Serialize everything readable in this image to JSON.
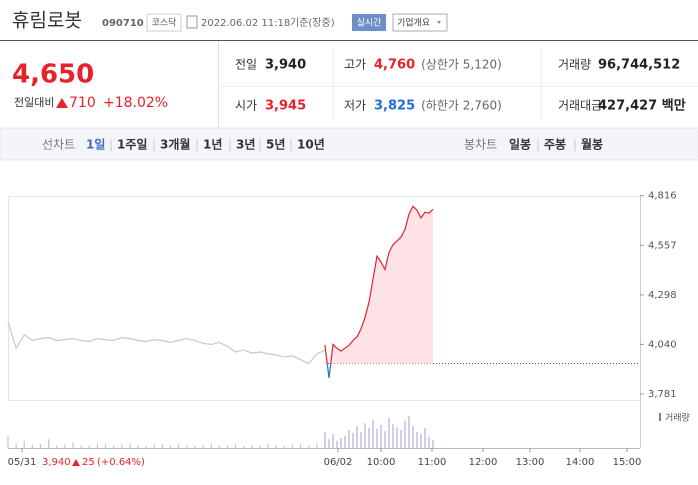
{
  "header": {
    "name": "휴림로봇",
    "code": "090710",
    "market": "코스닥",
    "datetime": "2022.06.02 11:18",
    "basis": "기준(장중)",
    "realtime": "실시간",
    "company_info": "기업개요"
  },
  "price": {
    "current": "4,650",
    "change_label": "전일대비",
    "change": "710",
    "change_pct": "+18.02%"
  },
  "stats": [
    {
      "label": "전일",
      "value": "3,940"
    },
    {
      "label": "고가",
      "value": "4,760",
      "note": "(상한가 5,120)"
    },
    {
      "label": "거래량",
      "value": "96,744,512"
    },
    {
      "label": "시가",
      "value": "3,945"
    },
    {
      "label": "저가",
      "value": "3,825",
      "note": "(하한가 2,760)"
    },
    {
      "label": "거래대금",
      "value": "427,427 백만"
    }
  ],
  "tabs": {
    "line_label": "선차트",
    "line_periods": [
      "1일",
      "1주일",
      "3개월",
      "1년",
      "3년",
      "5년",
      "10년"
    ],
    "candle_label": "봉차트",
    "candle_periods": [
      "일봉",
      "주봉",
      "월봉"
    ]
  },
  "chart_data": {
    "type": "line",
    "ylim": [
      3760,
      4830
    ],
    "yticks": [
      {
        "value": 4816,
        "label": "4,816"
      },
      {
        "value": 4557,
        "label": "4,557"
      },
      {
        "value": 4298,
        "label": "4,298"
      },
      {
        "value": 4040,
        "label": "4,040"
      },
      {
        "value": 3781,
        "label": "3,781"
      }
    ],
    "x_labels": [
      "05/31",
      "06/02",
      "10:00",
      "11:00",
      "12:00",
      "13:00",
      "14:00",
      "15:00"
    ],
    "baseline": 3940,
    "series": [
      {
        "color": "#c8c8c8",
        "values": [
          4160,
          4020,
          4090,
          4060,
          4070,
          4075,
          4060,
          4065,
          4070,
          4060,
          4055,
          4070,
          4065,
          4060,
          4075,
          4070,
          4060,
          4055,
          4065,
          4060,
          4050,
          4060,
          4070,
          4060,
          4045,
          4040,
          4050,
          4030,
          4000,
          4010,
          3995,
          4000,
          3990,
          3985,
          3975,
          3980,
          3960,
          3940,
          3990,
          4010
        ]
      },
      {
        "color": "#e6232b",
        "down_color": "#1f6fd1",
        "fill": "#fde3e5",
        "values": [
          4037,
          3864,
          4040,
          4020,
          4005,
          4020,
          4035,
          4060,
          4080,
          4120,
          4180,
          4260,
          4380,
          4500,
          4470,
          4430,
          4520,
          4560,
          4580,
          4600,
          4640,
          4720,
          4760,
          4740,
          4700,
          4730,
          4725,
          4745
        ]
      }
    ],
    "volume": {
      "name": "거래량",
      "color": "#b9a9d6",
      "ylim": [
        0,
        100
      ],
      "values": [
        30,
        12,
        18,
        8,
        10,
        22,
        6,
        9,
        14,
        7,
        5,
        11,
        8,
        6,
        9,
        12,
        7,
        5,
        8,
        10,
        6,
        9,
        7,
        5,
        8,
        11,
        6,
        7,
        9,
        5,
        8,
        6,
        10,
        7,
        5,
        8,
        9,
        6,
        12,
        15,
        40,
        22,
        35,
        18,
        25,
        30,
        45,
        38,
        55,
        40,
        62,
        50,
        70,
        48,
        58,
        42,
        75,
        60,
        52,
        45,
        68,
        80,
        55,
        40,
        35,
        50,
        28,
        20
      ]
    },
    "footer": {
      "close": "3,940",
      "change": "25",
      "change_pct": "(+0.64%)"
    }
  }
}
